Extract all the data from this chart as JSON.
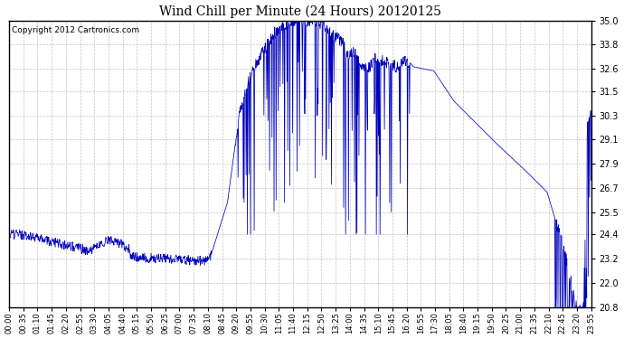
{
  "title": "Wind Chill per Minute (24 Hours) 20120125",
  "copyright_text": "Copyright 2012 Cartronics.com",
  "line_color": "#0000bb",
  "background_color": "#ffffff",
  "plot_bg_color": "#ffffff",
  "grid_color": "#bbbbbb",
  "ylim": [
    20.8,
    35.0
  ],
  "yticks": [
    20.8,
    22.0,
    23.2,
    24.4,
    25.5,
    26.7,
    27.9,
    29.1,
    30.3,
    31.5,
    32.6,
    33.8,
    35.0
  ],
  "title_fontsize": 10,
  "xlabel_fontsize": 6,
  "ylabel_fontsize": 7,
  "copyright_fontsize": 6.5,
  "xtick_labels": [
    "00:00",
    "00:35",
    "01:10",
    "01:45",
    "02:20",
    "02:55",
    "03:30",
    "04:05",
    "04:40",
    "05:15",
    "05:50",
    "06:25",
    "07:00",
    "07:35",
    "08:10",
    "08:45",
    "09:20",
    "09:55",
    "10:30",
    "11:05",
    "11:40",
    "12:15",
    "12:50",
    "13:25",
    "14:00",
    "14:35",
    "15:10",
    "15:45",
    "16:20",
    "16:55",
    "17:30",
    "18:05",
    "18:40",
    "19:15",
    "19:50",
    "20:25",
    "21:00",
    "21:35",
    "22:10",
    "22:45",
    "23:20",
    "23:55"
  ],
  "num_points": 1440
}
